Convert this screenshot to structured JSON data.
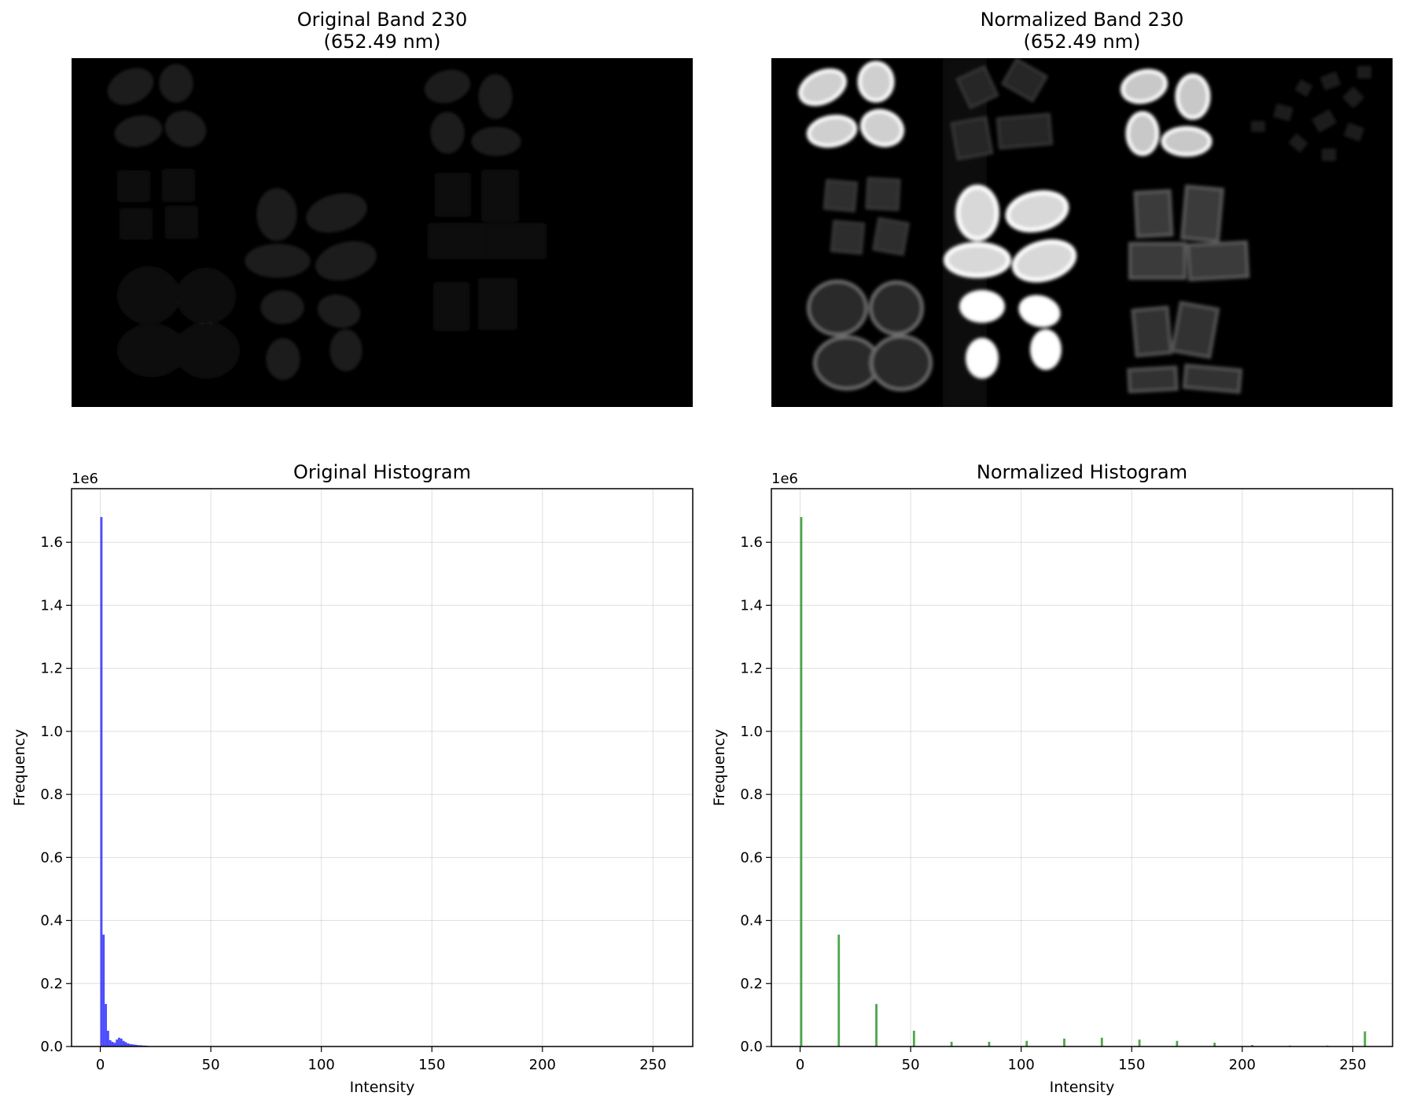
{
  "chart_data": [
    {
      "type": "image",
      "title_line1": "Original Band 230",
      "title_line2": "(652.49 nm)",
      "rendering": "raw",
      "colormap": "gray"
    },
    {
      "type": "image",
      "title_line1": "Normalized Band 230",
      "title_line2": "(652.49 nm)",
      "rendering": "normalized",
      "colormap": "gray"
    },
    {
      "type": "bar",
      "title": "Original Histogram",
      "xlabel": "Intensity",
      "ylabel": "Frequency",
      "offset_text": "1e6",
      "color": "#0000ff",
      "xlim": [
        -13,
        268
      ],
      "ylim": [
        0,
        1.77
      ],
      "xticks": [
        0,
        50,
        100,
        150,
        200,
        250
      ],
      "yticks": [
        0.0,
        0.2,
        0.4,
        0.6,
        0.8,
        1.0,
        1.2,
        1.4,
        1.6
      ],
      "ytick_labels": [
        "0.0",
        "0.2",
        "0.4",
        "0.6",
        "0.8",
        "1.0",
        "1.2",
        "1.4",
        "1.6"
      ],
      "grid": true,
      "bin_width": 1,
      "x": [
        0,
        1,
        2,
        3,
        4,
        5,
        6,
        7,
        8,
        9,
        10,
        11,
        12,
        13,
        14,
        15,
        16,
        17,
        18,
        19,
        20,
        21
      ],
      "values": [
        1.68,
        0.355,
        0.135,
        0.05,
        0.02,
        0.015,
        0.012,
        0.022,
        0.028,
        0.025,
        0.018,
        0.014,
        0.01,
        0.008,
        0.007,
        0.006,
        0.005,
        0.004,
        0.004,
        0.003,
        0.003,
        0.002
      ]
    },
    {
      "type": "bar",
      "title": "Normalized Histogram",
      "xlabel": "Intensity",
      "ylabel": "Frequency",
      "offset_text": "1e6",
      "color": "#008000",
      "xlim": [
        -13,
        268
      ],
      "ylim": [
        0,
        1.77
      ],
      "xticks": [
        0,
        50,
        100,
        150,
        200,
        250
      ],
      "yticks": [
        0.0,
        0.2,
        0.4,
        0.6,
        0.8,
        1.0,
        1.2,
        1.4,
        1.6
      ],
      "ytick_labels": [
        "0.0",
        "0.2",
        "0.4",
        "0.6",
        "0.8",
        "1.0",
        "1.2",
        "1.4",
        "1.6"
      ],
      "grid": true,
      "bin_width": 1,
      "x": [
        0,
        17,
        34,
        51,
        68,
        85,
        102,
        119,
        136,
        153,
        170,
        187,
        204,
        221,
        238,
        255
      ],
      "values": [
        1.68,
        0.355,
        0.135,
        0.05,
        0.015,
        0.015,
        0.018,
        0.025,
        0.028,
        0.022,
        0.018,
        0.012,
        0.005,
        0.003,
        0.003,
        0.048
      ]
    }
  ]
}
